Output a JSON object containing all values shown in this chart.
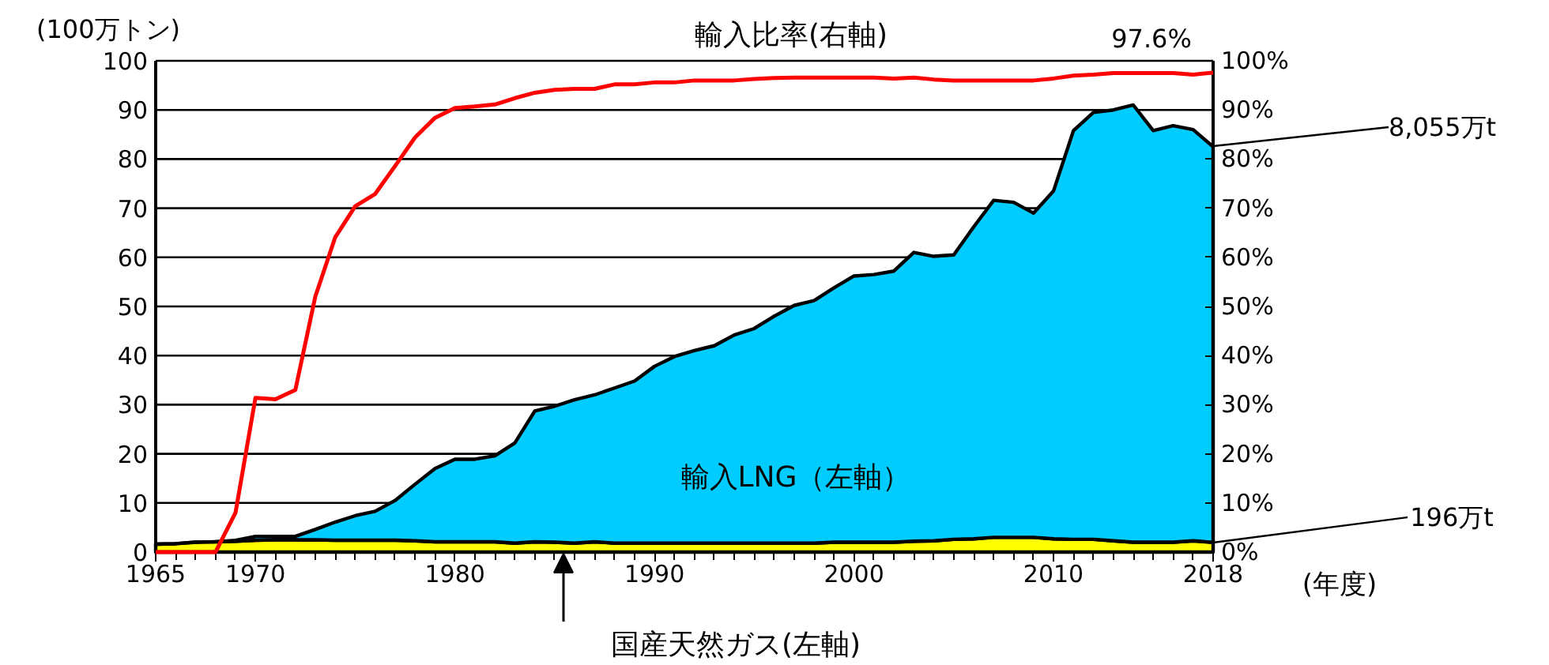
{
  "chart_data": {
    "type": "area",
    "stacked": true,
    "ylabel": "(100万トン)",
    "xlabel": "(年度)",
    "x": [
      1965,
      1966,
      1967,
      1968,
      1969,
      1970,
      1971,
      1972,
      1973,
      1974,
      1975,
      1976,
      1977,
      1978,
      1979,
      1980,
      1981,
      1982,
      1983,
      1984,
      1985,
      1986,
      1987,
      1988,
      1989,
      1990,
      1991,
      1992,
      1993,
      1994,
      1995,
      1996,
      1997,
      1998,
      1999,
      2000,
      2001,
      2002,
      2003,
      2004,
      2005,
      2006,
      2007,
      2008,
      2009,
      2010,
      2011,
      2012,
      2013,
      2014,
      2015,
      2016,
      2017,
      2018
    ],
    "series": [
      {
        "name": "国産天然ガス(左軸)",
        "color": "#ffff00",
        "values": [
          1.6,
          1.7,
          2.0,
          2.1,
          2.2,
          2.4,
          2.5,
          2.5,
          2.5,
          2.4,
          2.4,
          2.4,
          2.4,
          2.3,
          2.1,
          2.1,
          2.1,
          2.1,
          1.8,
          2.1,
          2.0,
          1.8,
          2.1,
          1.8,
          1.8,
          1.8,
          1.8,
          1.8,
          1.8,
          1.8,
          1.8,
          1.8,
          1.8,
          1.8,
          2.0,
          2.0,
          2.0,
          2.0,
          2.2,
          2.3,
          2.6,
          2.7,
          3.0,
          3.0,
          3.0,
          2.7,
          2.6,
          2.6,
          2.3,
          2.0,
          2.0,
          2.0,
          2.3,
          1.96
        ]
      },
      {
        "name": "輸入LNG（左軸）",
        "color": "#00ccff",
        "values": [
          0,
          0,
          0,
          0,
          0.2,
          0.8,
          0.7,
          0.7,
          2.1,
          3.7,
          5.0,
          5.9,
          8.1,
          11.5,
          14.9,
          16.8,
          16.8,
          17.5,
          20.4,
          26.6,
          27.7,
          29.2,
          29.9,
          31.6,
          33.0,
          36.0,
          38.0,
          39.2,
          40.2,
          42.4,
          43.7,
          46.2,
          48.4,
          49.4,
          51.8,
          54.2,
          54.5,
          55.2,
          58.8,
          57.9,
          57.9,
          63.5,
          68.6,
          68.2,
          66.0,
          70.8,
          83.2,
          86.9,
          87.7,
          89.0,
          83.8,
          84.8,
          83.7,
          80.55
        ]
      },
      {
        "name": "輸入比率(右軸)",
        "type": "line",
        "axis": "y2",
        "color": "#ff0000",
        "values": [
          0,
          0,
          0,
          0,
          8.0,
          31.4,
          31.1,
          33.0,
          52.0,
          64.1,
          70.4,
          72.9,
          78.6,
          84.4,
          88.4,
          90.4,
          90.7,
          91.1,
          92.4,
          93.5,
          94.1,
          94.3,
          94.3,
          95.2,
          95.2,
          95.6,
          95.6,
          96.0,
          96.0,
          96.0,
          96.3,
          96.5,
          96.6,
          96.6,
          96.6,
          96.6,
          96.6,
          96.4,
          96.6,
          96.2,
          96.0,
          96.0,
          96.0,
          96.0,
          96.0,
          96.4,
          97.0,
          97.2,
          97.5,
          97.5,
          97.5,
          97.5,
          97.2,
          97.6
        ]
      }
    ],
    "xlim": [
      1965,
      2018
    ],
    "xticks": [
      1965,
      1970,
      1980,
      1990,
      2000,
      2010,
      2018
    ],
    "ylim": [
      0,
      100
    ],
    "yticks": [
      0,
      10,
      20,
      30,
      40,
      50,
      60,
      70,
      80,
      90,
      100
    ],
    "y2lim": [
      0,
      100
    ],
    "y2ticks": [
      {
        "value": 0,
        "label": "0%"
      },
      {
        "value": 10,
        "label": "10%"
      },
      {
        "value": 20,
        "label": "20%"
      },
      {
        "value": 30,
        "label": "30%"
      },
      {
        "value": 40,
        "label": "40%"
      },
      {
        "value": 50,
        "label": "50%"
      },
      {
        "value": 60,
        "label": "60%"
      },
      {
        "value": 70,
        "label": "70%"
      },
      {
        "value": 80,
        "label": "80%"
      },
      {
        "value": 90,
        "label": "90%"
      },
      {
        "value": 100,
        "label": "100%"
      }
    ],
    "annotations": [
      "97.6%",
      "8,055万t",
      "196万t"
    ],
    "grid": "y",
    "legend": false,
    "marker": "none",
    "line_style": "solid"
  }
}
